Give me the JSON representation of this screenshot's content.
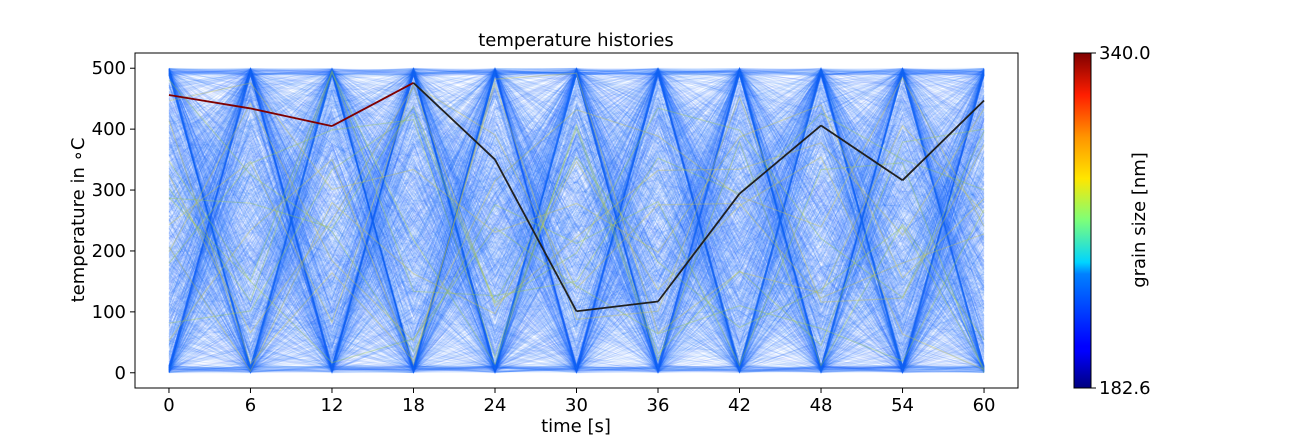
{
  "chart_data": {
    "type": "line",
    "title": "temperature histories",
    "xlabel": "time [s]",
    "ylabel": "temperature in ∘C",
    "x": [
      0,
      6,
      12,
      18,
      24,
      30,
      36,
      42,
      48,
      54,
      60
    ],
    "xlim": [
      -2.5,
      62.5
    ],
    "ylim": [
      -25,
      525
    ],
    "x_ticks": [
      0,
      6,
      12,
      18,
      24,
      30,
      36,
      42,
      48,
      54,
      60
    ],
    "y_ticks": [
      0,
      100,
      200,
      300,
      400,
      500
    ],
    "grid": false,
    "colormap": "jet",
    "colorbar": {
      "label": "grain size [nm]",
      "min": 182.6,
      "max": 340.0,
      "min_label": "182.6",
      "max_label": "340.0"
    },
    "series": [
      {
        "values": [
          456,
          434,
          405,
          476,
          350,
          101,
          117,
          294,
          406,
          316,
          447
        ],
        "grain_size": 340.0
      }
    ],
    "background_ensemble": {
      "description_count": 1800,
      "temperature_range": [
        0,
        500
      ],
      "dominant_color": "#1f6fff"
    }
  }
}
